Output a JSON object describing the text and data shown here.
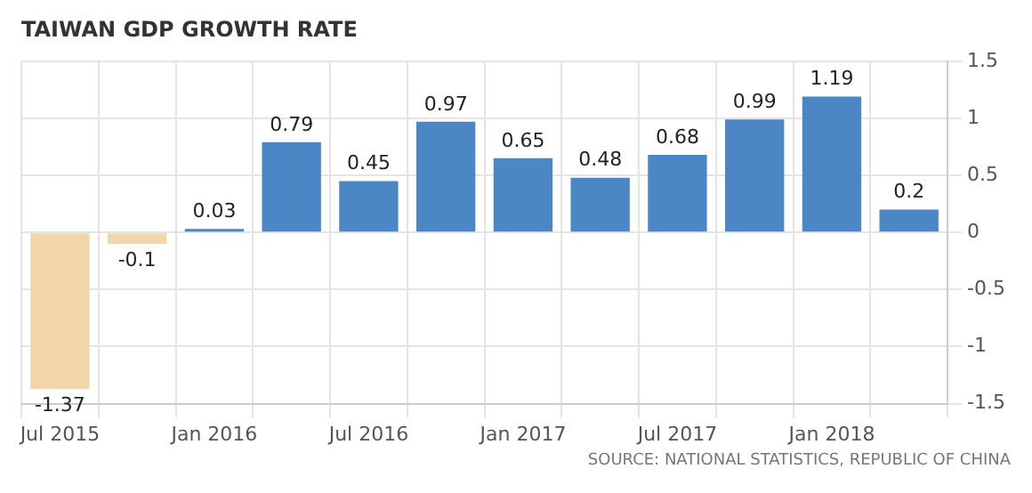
{
  "chart_data": {
    "type": "bar",
    "title": "TAIWAN GDP GROWTH RATE",
    "categories": [
      "Jul 2015",
      null,
      "Jan 2016",
      null,
      "Jul 2016",
      null,
      "Jan 2017",
      null,
      "Jul 2017",
      null,
      "Jan 2018",
      null
    ],
    "values": [
      -1.37,
      -0.1,
      0.03,
      0.79,
      0.45,
      0.97,
      0.65,
      0.48,
      0.68,
      0.99,
      1.19,
      0.2
    ],
    "colors": [
      "#f0d6a8",
      "#f0d6a8",
      "#4a87c4",
      "#4a87c4",
      "#4a87c4",
      "#4a87c4",
      "#4a87c4",
      "#4a87c4",
      "#4a87c4",
      "#4a87c4",
      "#4a87c4",
      "#4a87c4"
    ],
    "ylim": [
      -1.5,
      1.5
    ],
    "yticks": [
      -1.5,
      -1,
      -0.5,
      0,
      0.5,
      1,
      1.5
    ],
    "grid": true,
    "data_labels": true,
    "annotations": [
      "SOURCE: NATIONAL STATISTICS, REPUBLIC OF CHINA"
    ]
  }
}
